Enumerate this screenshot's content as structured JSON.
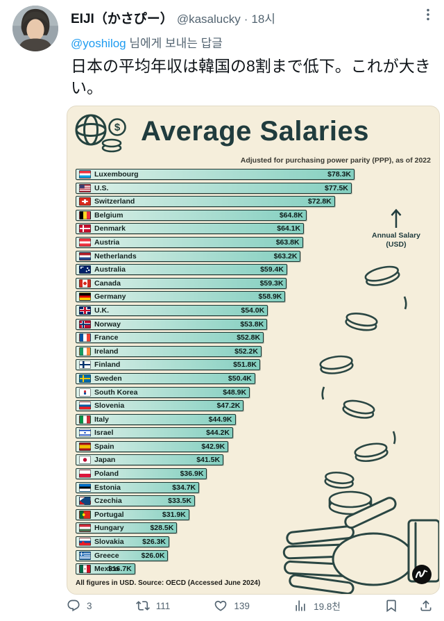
{
  "tweet": {
    "author": {
      "name": "EIJI（かさぴー）",
      "handle": "@kasalucky",
      "separator": "·",
      "time": "18시"
    },
    "reply": {
      "mention": "@yoshilog",
      "suffix": " 님에게 보내는 답글"
    },
    "body": "日本の平均年収は韓国の8割まで低下。これが大きい。",
    "actions": {
      "reply_count": "3",
      "repost_count": "111",
      "like_count": "139",
      "view_count": "19.8천"
    }
  },
  "infographic": {
    "title": "Average Salaries",
    "subtitle": "Adjusted for purchasing power parity (PPP), as of 2022",
    "annotation": "Annual Salary (USD)",
    "footer": "All figures in USD. Source: OECD (Accessed June 2024)",
    "dollar": "$",
    "colors": {
      "card_bg": "#f5eedb",
      "ink": "#203c3e",
      "bar_from": "#ddf0e8",
      "bar_to": "#84cfc0",
      "accent_blue": "#1d9bf0",
      "muted_gray": "#536471"
    }
  },
  "chart_data": {
    "type": "bar",
    "title": "Average Salaries",
    "subtitle": "Adjusted for purchasing power parity (PPP), as of 2022",
    "ylabel": "Annual Salary (USD)",
    "source": "All figures in USD. Source: OECD (Accessed June 2024)",
    "orientation": "horizontal",
    "sorted": "descending",
    "xlim": [
      0,
      78.3
    ],
    "categories": [
      "Luxembourg",
      "U.S.",
      "Switzerland",
      "Belgium",
      "Denmark",
      "Austria",
      "Netherlands",
      "Australia",
      "Canada",
      "Germany",
      "U.K.",
      "Norway",
      "France",
      "Ireland",
      "Finland",
      "Sweden",
      "South Korea",
      "Slovenia",
      "Italy",
      "Israel",
      "Spain",
      "Japan",
      "Poland",
      "Estonia",
      "Czechia",
      "Portugal",
      "Hungary",
      "Slovakia",
      "Greece",
      "Mexico"
    ],
    "values": [
      78.3,
      77.5,
      72.8,
      64.8,
      64.1,
      63.8,
      63.2,
      59.4,
      59.3,
      58.9,
      54.0,
      53.8,
      52.8,
      52.2,
      51.8,
      50.4,
      48.9,
      47.2,
      44.9,
      44.2,
      42.9,
      41.5,
      36.9,
      34.7,
      33.5,
      31.9,
      28.5,
      26.3,
      26.0,
      16.7
    ],
    "labels": [
      "$78.3K",
      "$77.5K",
      "$72.8K",
      "$64.8K",
      "$64.1K",
      "$63.8K",
      "$63.2K",
      "$59.4K",
      "$59.3K",
      "$58.9K",
      "$54.0K",
      "$53.8K",
      "$52.8K",
      "$52.2K",
      "$51.8K",
      "$50.4K",
      "$48.9K",
      "$47.2K",
      "$44.9K",
      "$44.2K",
      "$42.9K",
      "$41.5K",
      "$36.9K",
      "$34.7K",
      "$33.5K",
      "$31.9K",
      "$28.5K",
      "$26.3K",
      "$26.0K",
      "$16.7K"
    ],
    "flags": [
      "linear-gradient(180deg,#ef3340 0 33%,#ffffff 33% 66%,#00a2e1 66%)",
      "linear-gradient(#3c3b6e,#3c3b6e) 0 0/45% 50% no-repeat, repeating-linear-gradient(180deg,#b22234 0 1.4px,#ffffff 1.4px 2.8px)",
      "linear-gradient(#ffffff,#ffffff) 50% 50%/58% 20% no-repeat, linear-gradient(#ffffff,#ffffff) 50% 50%/20% 58% no-repeat, linear-gradient(#da291c,#da291c)",
      "linear-gradient(90deg,#000000 0 33%,#fdda25 33% 66%,#ef3340 66%)",
      "linear-gradient(#ffffff,#ffffff) 0 50%/100% 18% no-repeat, linear-gradient(#ffffff,#ffffff) 30% 0/15% 100% no-repeat, linear-gradient(#c8102e,#c8102e)",
      "linear-gradient(180deg,#ef3340 0 33%,#ffffff 33% 66%,#ef3340 66%)",
      "linear-gradient(180deg,#ae1c28 0 33%,#ffffff 33% 66%,#21468b 66%)",
      "linear-gradient(#ffffff,#ffffff) 10% 12%/30% 10% no-repeat, linear-gradient(#ffffff,#ffffff) 10% 12%/10% 34% no-repeat, radial-gradient(circle at 75% 30%, #ffffff 0 8%, transparent 9%), radial-gradient(circle at 65% 75%, #ffffff 0 8%, transparent 9%), radial-gradient(circle at 88% 60%, #ffffff 0 8%, transparent 9%), linear-gradient(#012169,#012169)",
      "radial-gradient(circle at 50% 50%, #d52b1e 0 26%, transparent 27%), linear-gradient(90deg,#d52b1e 0 27%,#ffffff 27% 73%,#d52b1e 73%)",
      "linear-gradient(180deg,#000000 0 33%,#dd0000 33% 66%,#ffce00 66%)",
      "linear-gradient(#c8102e,#c8102e) 50% 50%/100% 22% no-repeat, linear-gradient(#c8102e,#c8102e) 50% 50%/22% 100% no-repeat, linear-gradient(#ffffff,#ffffff) 50% 50%/100% 38% no-repeat, linear-gradient(#ffffff,#ffffff) 50% 50%/38% 100% no-repeat, linear-gradient(#012169,#012169)",
      "linear-gradient(#002868,#002868) 0 50%/100% 18% no-repeat, linear-gradient(#002868,#002868) 30% 0/15% 100% no-repeat, linear-gradient(#ffffff,#ffffff) 0 50%/100% 32% no-repeat, linear-gradient(#ffffff,#ffffff) 27% 0/26% 100% no-repeat, linear-gradient(#ba0c2f,#ba0c2f)",
      "linear-gradient(90deg,#0055a4 0 33%,#ffffff 33% 66%,#ef4135 66%)",
      "linear-gradient(90deg,#169b62 0 33%,#ffffff 33% 66%,#ff883e 66%)",
      "linear-gradient(#002f6c,#002f6c) 0 50%/100% 20% no-repeat, linear-gradient(#002f6c,#002f6c) 30% 0/17% 100% no-repeat, linear-gradient(#ffffff,#ffffff)",
      "linear-gradient(#fecc02,#fecc02) 0 50%/100% 18% no-repeat, linear-gradient(#fecc02,#fecc02) 30% 0/15% 100% no-repeat, linear-gradient(#006aa7,#006aa7)",
      "radial-gradient(circle at 50% 36%, #cd2e3a 0 17%, transparent 18%), radial-gradient(circle at 50% 64%, #0047a0 0 17%, transparent 18%), linear-gradient(#ffffff,#ffffff)",
      "linear-gradient(180deg,#ffffff 0 33%,#005da4 33% 66%,#ed1c24 66%)",
      "linear-gradient(90deg,#009246 0 33%,#ffffff 33% 66%,#ce2b37 66%)",
      "linear-gradient(180deg, transparent 0 12%, #0038b8 12% 25%, transparent 25% 75%, #0038b8 75% 88%, transparent 88%), radial-gradient(circle at 50% 50%, #0038b8 0 13%, transparent 14%), linear-gradient(#ffffff,#ffffff)",
      "linear-gradient(180deg,#aa151b 0 25%,#f1bf00 25% 75%,#aa151b 75%)",
      "radial-gradient(circle at 50% 50%, #bc002d 0 30%, transparent 31%), linear-gradient(#ffffff,#ffffff)",
      "linear-gradient(180deg,#ffffff 0 50%,#dc143c 50%)",
      "linear-gradient(180deg,#0072ce 0 33%,#000000 33% 66%,#ffffff 66%)",
      "conic-gradient(from 55deg at 0% 50%, #11457e 0 70deg, transparent 70deg), linear-gradient(180deg,#ffffff 0 50%,#d7141a 50%)",
      "radial-gradient(circle at 38% 50%, #ffe900 0 18%, transparent 19%), linear-gradient(90deg,#046a38 0 38%,#da291c 38%)",
      "linear-gradient(180deg,#ce2939 0 33%,#ffffff 33% 66%,#477050 66%)",
      "radial-gradient(circle at 32% 62%, #ee1c25 0 16%, transparent 17%), linear-gradient(180deg,#ffffff 0 33%,#0b4ea2 33% 66%,#ee1c25 66%)",
      "linear-gradient(#ffffff,#ffffff) 16% 0/8% 50% no-repeat, linear-gradient(#ffffff,#ffffff) 0 26%/42% 12% no-repeat, linear-gradient(#0d5eaf,#0d5eaf) 0 0/42% 50% no-repeat, repeating-linear-gradient(180deg,#0d5eaf 0 1.1px,#ffffff 1.1px 2.2px)",
      "radial-gradient(circle at 50% 50%, #8c6239 0 10%, transparent 11%), linear-gradient(90deg,#006847 0 33%,#ffffff 33% 66%,#ce1126 66%)"
    ]
  }
}
